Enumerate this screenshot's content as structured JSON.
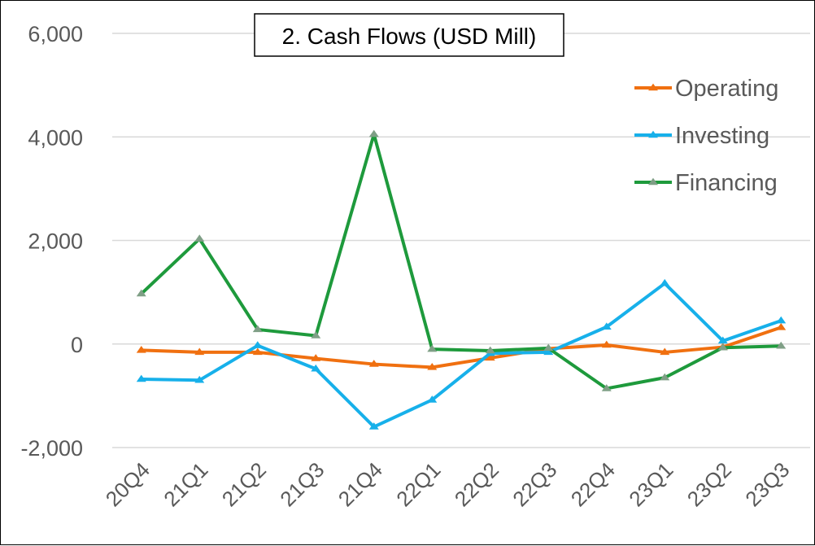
{
  "chart_data": {
    "type": "line",
    "title": "2. Cash Flows (USD Mill)",
    "xlabel": "",
    "ylabel": "",
    "categories": [
      "20Q4",
      "21Q1",
      "21Q2",
      "21Q3",
      "21Q4",
      "22Q1",
      "22Q2",
      "22Q3",
      "22Q4",
      "23Q1",
      "23Q2",
      "23Q3"
    ],
    "ylim": [
      -2000,
      6000
    ],
    "yticks": [
      -2000,
      0,
      2000,
      4000,
      6000
    ],
    "ytick_labels": [
      "-2,000",
      "0",
      "2,000",
      "4,000",
      "6,000"
    ],
    "grid": true,
    "legend_position": "top-right",
    "series": [
      {
        "name": "Operating",
        "color": "#f07010",
        "values": [
          -120,
          -160,
          -160,
          -280,
          -390,
          -450,
          -270,
          -90,
          -20,
          -160,
          -60,
          320
        ]
      },
      {
        "name": "Investing",
        "color": "#17b0ea",
        "values": [
          -680,
          -700,
          -30,
          -480,
          -1600,
          -1080,
          -180,
          -160,
          330,
          1170,
          60,
          450
        ]
      },
      {
        "name": "Financing",
        "color": "#1e9a3c",
        "values": [
          970,
          2030,
          280,
          160,
          4050,
          -100,
          -130,
          -80,
          -860,
          -650,
          -70,
          -40
        ]
      }
    ]
  }
}
